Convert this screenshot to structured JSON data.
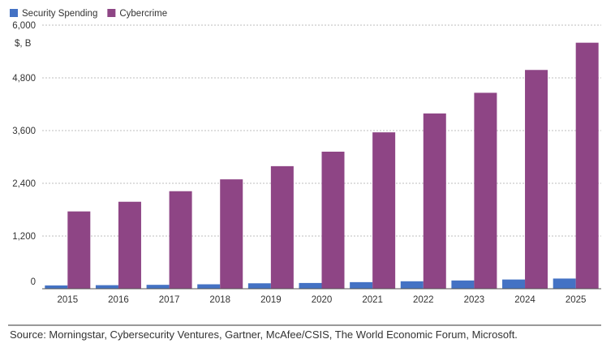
{
  "chart_data": {
    "type": "bar",
    "title": "",
    "xlabel": "",
    "ylabel": "$, B",
    "ylim": [
      0,
      6000
    ],
    "yticks": [
      {
        "value": 0,
        "label": "0"
      },
      {
        "value": 1200,
        "label": "1,200"
      },
      {
        "value": 2400,
        "label": "2,400"
      },
      {
        "value": 3600,
        "label": "3,600"
      },
      {
        "value": 4800,
        "label": "4,800"
      },
      {
        "value": 6000,
        "label": "6,000"
      }
    ],
    "categories": [
      "2015",
      "2016",
      "2017",
      "2018",
      "2019",
      "2020",
      "2021",
      "2022",
      "2023",
      "2024",
      "2025"
    ],
    "series": [
      {
        "name": "Security Spending",
        "color": "#4472c4",
        "values": [
          75,
          81,
          89,
          101,
          124,
          131,
          150,
          170,
          188,
          210,
          232
        ]
      },
      {
        "name": "Cybercrime",
        "color": "#8e4585",
        "values": [
          1760,
          1980,
          2220,
          2490,
          2790,
          3120,
          3560,
          3990,
          4460,
          4980,
          5600
        ]
      }
    ],
    "grid": true,
    "legend": "top-left",
    "source": "Source: Morningstar, Cybersecurity Ventures, Gartner, McAfee/CSIS, The World Economic Forum, Microsoft."
  }
}
